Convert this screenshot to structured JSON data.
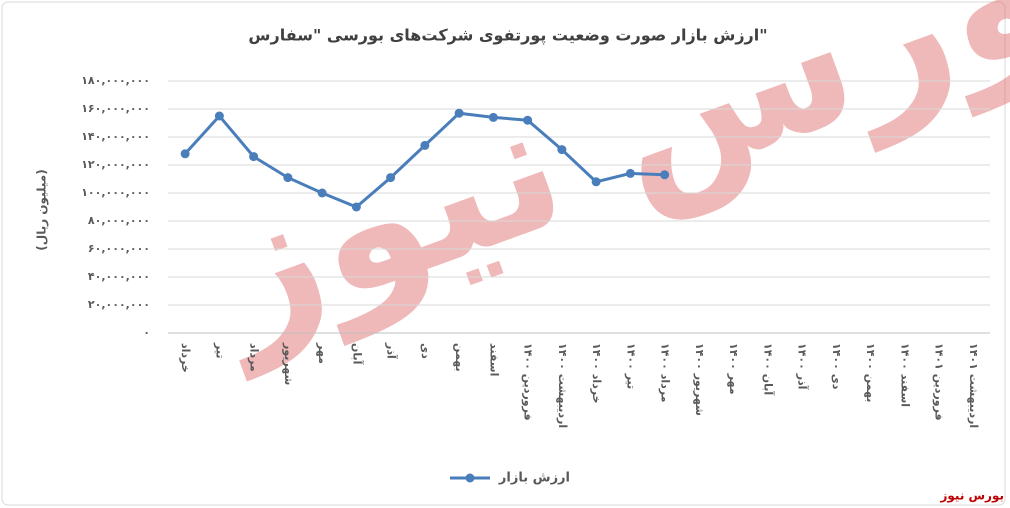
{
  "chart_data": {
    "type": "line",
    "title": "ارزش بازار صورت وضعیت پورتفوی شرکت‌های بورسی \"سفارس\"",
    "y_label": "(میلیون ریال)",
    "watermark": "بورس نیوز",
    "credit": "بورس نیوز",
    "categories": [
      "خرداد",
      "تیر",
      "مرداد",
      "شهریور",
      "مهر",
      "آبان",
      "آذر",
      "دی",
      "بهمن",
      "اسفند",
      "فروردین ۱۴۰۰",
      "اردیبهشت ۱۴۰۰",
      "خرداد ۱۴۰۰",
      "تیر ۱۴۰۰",
      "مرداد ۱۴۰۰",
      "شهریور ۱۴۰۰",
      "مهر ۱۴۰۰",
      "آبان ۱۴۰۰",
      "آذر ۱۴۰۰",
      "دی ۱۴۰۰",
      "بهمن ۱۴۰۰",
      "اسفند ۱۴۰۰",
      "فروردین ۱۴۰۱",
      "اردیبهشت ۱۴۰۱"
    ],
    "series": [
      {
        "name": "ارزش بازار",
        "color": "#4a7ebb",
        "values": [
          128000000,
          155000000,
          126000000,
          111000000,
          100000000,
          90000000,
          111000000,
          134000000,
          157000000,
          154000000,
          152000000,
          131000000,
          108000000,
          114000000,
          113000000,
          null,
          null,
          null,
          null,
          null,
          null,
          null,
          null,
          null
        ]
      }
    ],
    "ylim": [
      0,
      180000000
    ],
    "yticks": [
      {
        "value": 0,
        "label": "۰"
      },
      {
        "value": 20000000,
        "label": "۲۰,۰۰۰,۰۰۰"
      },
      {
        "value": 40000000,
        "label": "۴۰,۰۰۰,۰۰۰"
      },
      {
        "value": 60000000,
        "label": "۶۰,۰۰۰,۰۰۰"
      },
      {
        "value": 80000000,
        "label": "۸۰,۰۰۰,۰۰۰"
      },
      {
        "value": 100000000,
        "label": "۱۰۰,۰۰۰,۰۰۰"
      },
      {
        "value": 120000000,
        "label": "۱۲۰,۰۰۰,۰۰۰"
      },
      {
        "value": 140000000,
        "label": "۱۴۰,۰۰۰,۰۰۰"
      },
      {
        "value": 160000000,
        "label": "۱۶۰,۰۰۰,۰۰۰"
      },
      {
        "value": 180000000,
        "label": "۱۸۰,۰۰۰,۰۰۰"
      }
    ],
    "grid": true,
    "legend": "bottom"
  }
}
